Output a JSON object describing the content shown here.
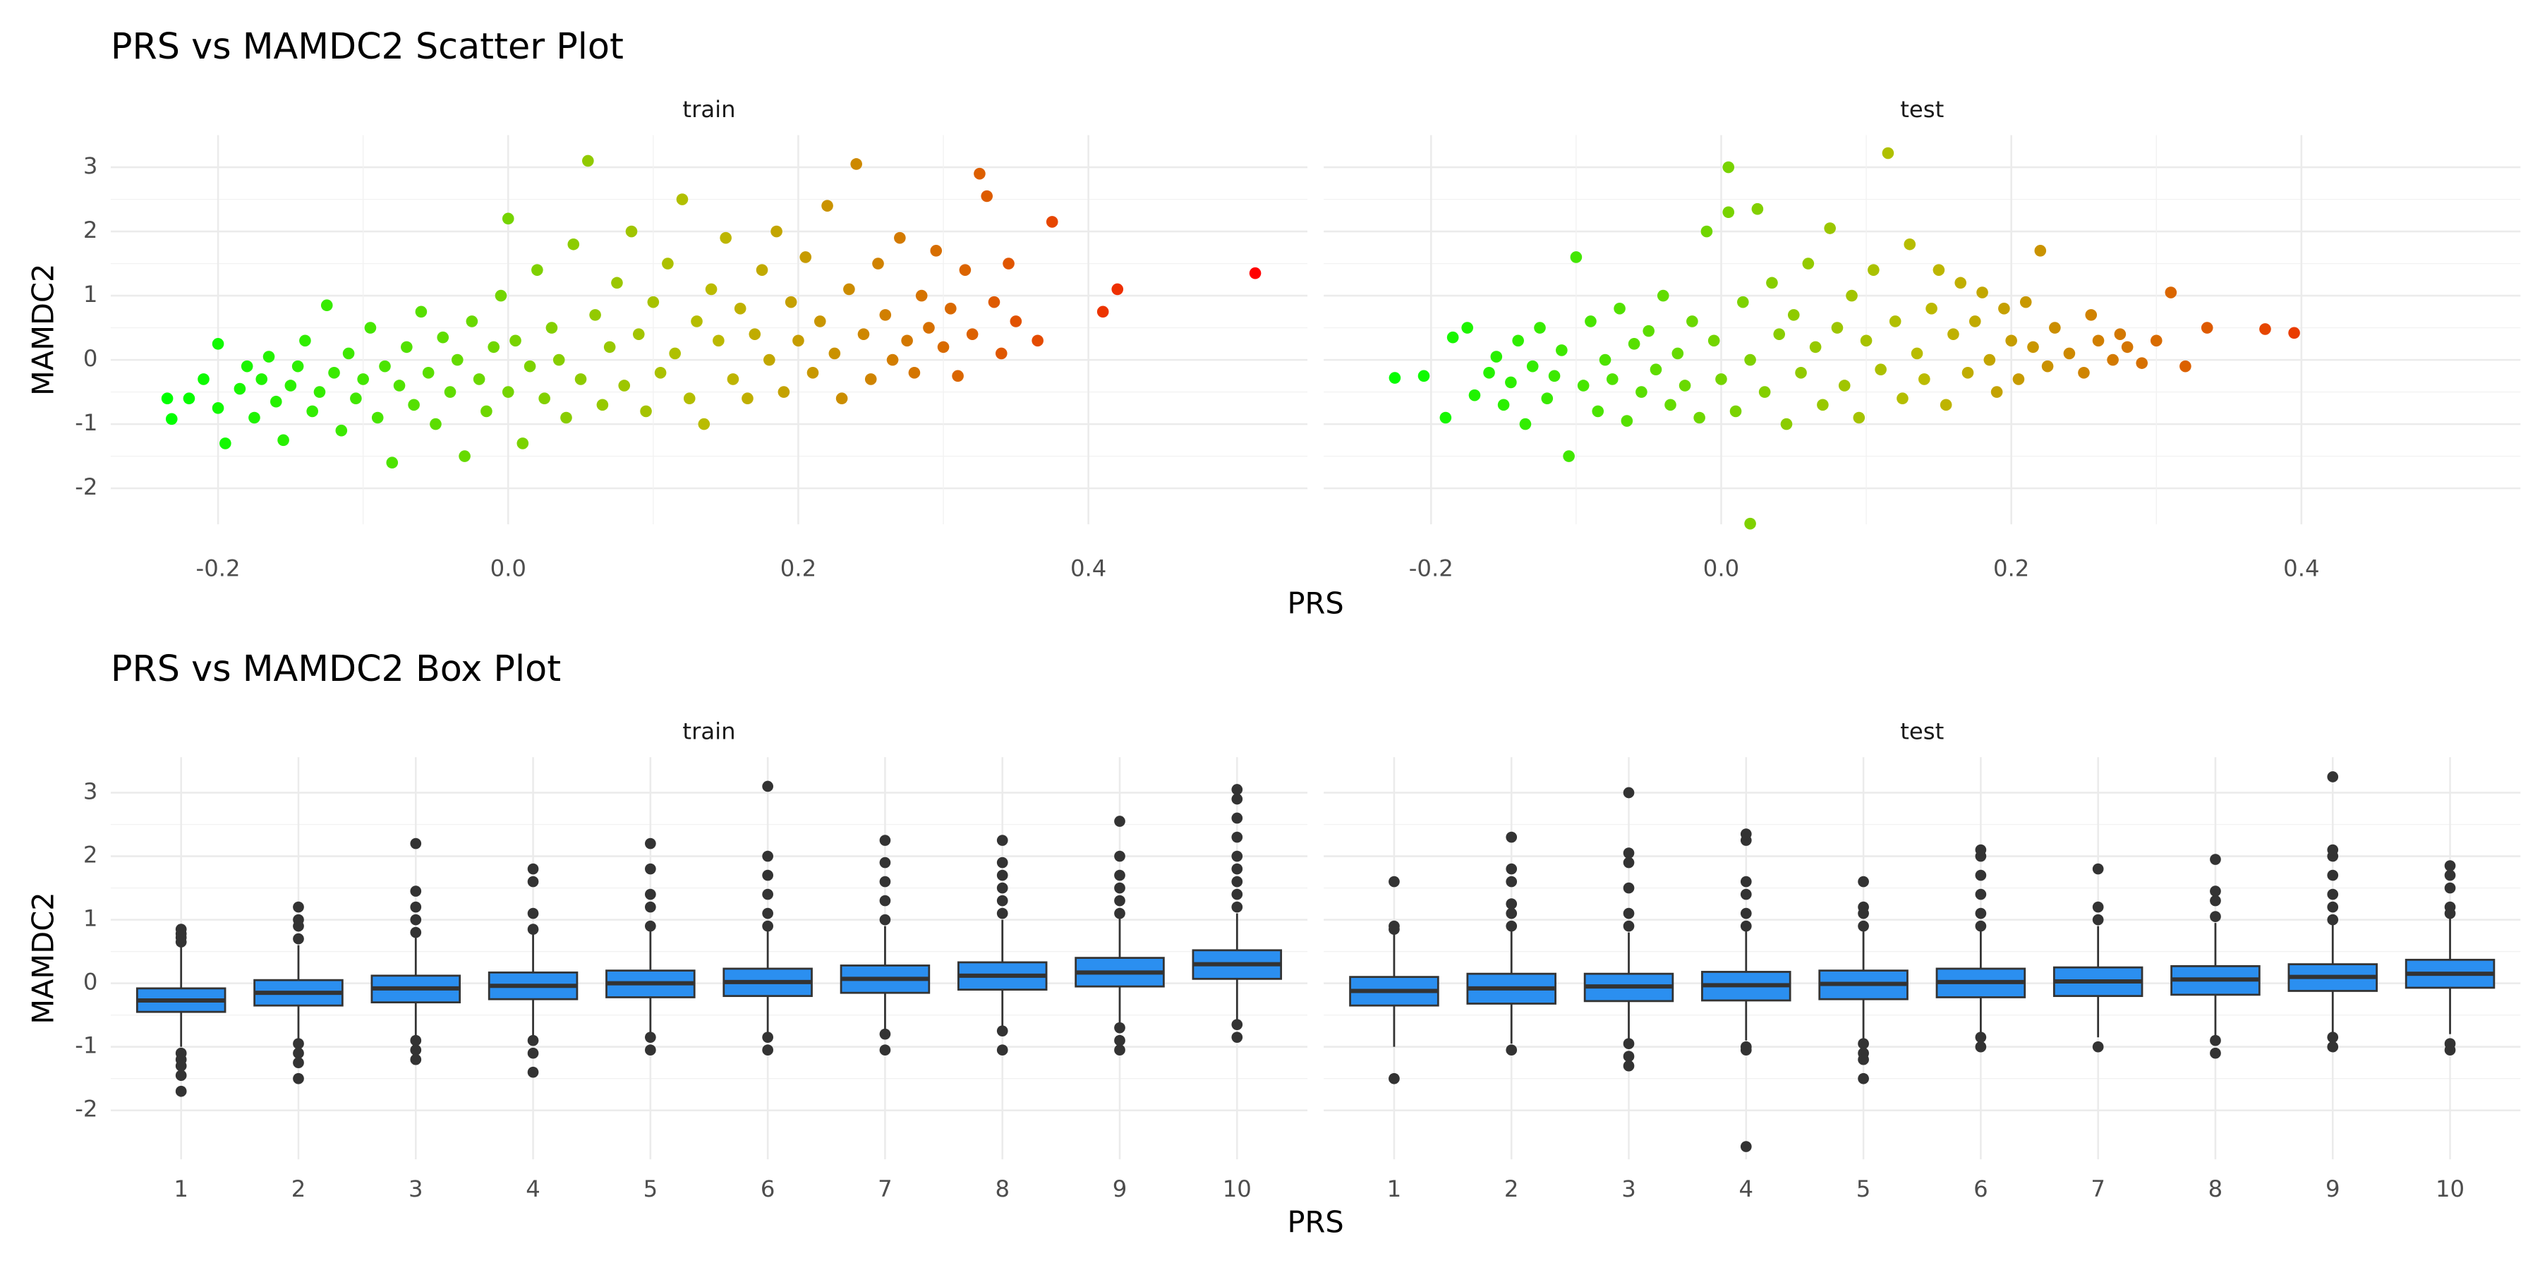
{
  "chart_data": [
    {
      "type": "scatter",
      "title": "PRS vs MAMDC2 Scatter Plot",
      "xlabel": "PRS",
      "ylabel": "MAMDC2",
      "xlim": [
        -0.274,
        0.551
      ],
      "xticks": [
        -0.2,
        {
          "value": 0,
          "label": "0.0"
        },
        0.2,
        0.4
      ],
      "ylim": [
        -2.56,
        3.5
      ],
      "yticks": [
        -2,
        -1,
        0,
        1,
        2,
        3
      ],
      "grid": true,
      "color_low": "#00ff00",
      "color_mid": "#bbbb00",
      "color_high": "#ff0000",
      "facets": [
        {
          "label": "train",
          "x": [
            -0.235,
            -0.232,
            -0.22,
            -0.21,
            -0.2,
            -0.2,
            -0.195,
            -0.185,
            -0.18,
            -0.175,
            -0.17,
            -0.165,
            -0.16,
            -0.155,
            -0.15,
            -0.145,
            -0.14,
            -0.135,
            -0.13,
            -0.125,
            -0.12,
            -0.115,
            -0.11,
            -0.105,
            -0.1,
            -0.095,
            -0.09,
            -0.085,
            -0.08,
            -0.075,
            -0.07,
            -0.065,
            -0.06,
            -0.055,
            -0.05,
            -0.045,
            -0.04,
            -0.035,
            -0.03,
            -0.025,
            -0.02,
            -0.015,
            -0.01,
            -0.005,
            0.0,
            0.0,
            0.005,
            0.01,
            0.015,
            0.02,
            0.025,
            0.03,
            0.035,
            0.04,
            0.045,
            0.05,
            0.055,
            0.06,
            0.065,
            0.07,
            0.075,
            0.08,
            0.085,
            0.09,
            0.095,
            0.1,
            0.105,
            0.11,
            0.115,
            0.12,
            0.125,
            0.13,
            0.135,
            0.14,
            0.145,
            0.15,
            0.155,
            0.16,
            0.165,
            0.17,
            0.175,
            0.18,
            0.185,
            0.19,
            0.195,
            0.2,
            0.205,
            0.21,
            0.215,
            0.22,
            0.225,
            0.23,
            0.235,
            0.24,
            0.245,
            0.25,
            0.255,
            0.26,
            0.265,
            0.27,
            0.275,
            0.28,
            0.285,
            0.29,
            0.295,
            0.3,
            0.305,
            0.31,
            0.315,
            0.32,
            0.325,
            0.33,
            0.335,
            0.34,
            0.345,
            0.35,
            0.365,
            0.375,
            0.41,
            0.42,
            0.515
          ],
          "y": [
            -0.6,
            -0.92,
            -0.6,
            -0.3,
            0.25,
            -0.75,
            -1.3,
            -0.45,
            -0.1,
            -0.9,
            -0.3,
            0.05,
            -0.65,
            -1.25,
            -0.4,
            -0.1,
            0.3,
            -0.8,
            -0.5,
            0.85,
            -0.2,
            -1.1,
            0.1,
            -0.6,
            -0.3,
            0.5,
            -0.9,
            -0.1,
            -1.6,
            -0.4,
            0.2,
            -0.7,
            0.75,
            -0.2,
            -1.0,
            0.35,
            -0.5,
            0.0,
            -1.5,
            0.6,
            -0.3,
            -0.8,
            0.2,
            1.0,
            -0.5,
            2.2,
            0.3,
            -1.3,
            -0.1,
            1.4,
            -0.6,
            0.5,
            0.0,
            -0.9,
            1.8,
            -0.3,
            3.1,
            0.7,
            -0.7,
            0.2,
            1.2,
            -0.4,
            2.0,
            0.4,
            -0.8,
            0.9,
            -0.2,
            1.5,
            0.1,
            2.5,
            -0.6,
            0.6,
            -1.0,
            1.1,
            0.3,
            1.9,
            -0.3,
            0.8,
            -0.6,
            0.4,
            1.4,
            0.0,
            2.0,
            -0.5,
            0.9,
            0.3,
            1.6,
            -0.2,
            0.6,
            2.4,
            0.1,
            -0.6,
            1.1,
            3.05,
            0.4,
            -0.3,
            1.5,
            0.7,
            0.0,
            1.9,
            0.3,
            -0.2,
            1.0,
            0.5,
            1.7,
            0.2,
            0.8,
            -0.25,
            1.4,
            0.4,
            2.9,
            2.55,
            0.9,
            0.1,
            1.5,
            0.6,
            0.3,
            2.15,
            0.75,
            1.1,
            1.35
          ]
        },
        {
          "label": "test",
          "x": [
            -0.225,
            -0.205,
            -0.19,
            -0.185,
            -0.175,
            -0.17,
            -0.16,
            -0.155,
            -0.15,
            -0.145,
            -0.14,
            -0.135,
            -0.13,
            -0.125,
            -0.12,
            -0.115,
            -0.11,
            -0.105,
            -0.1,
            -0.095,
            -0.09,
            -0.085,
            -0.08,
            -0.075,
            -0.07,
            -0.065,
            -0.06,
            -0.055,
            -0.05,
            -0.045,
            -0.04,
            -0.035,
            -0.03,
            -0.025,
            -0.02,
            -0.015,
            -0.01,
            -0.005,
            0.0,
            0.005,
            0.005,
            0.01,
            0.015,
            0.02,
            0.02,
            0.025,
            0.03,
            0.035,
            0.04,
            0.045,
            0.05,
            0.055,
            0.06,
            0.065,
            0.07,
            0.075,
            0.08,
            0.085,
            0.09,
            0.095,
            0.1,
            0.105,
            0.11,
            0.115,
            0.12,
            0.125,
            0.13,
            0.135,
            0.14,
            0.145,
            0.15,
            0.155,
            0.16,
            0.165,
            0.17,
            0.175,
            0.18,
            0.185,
            0.19,
            0.195,
            0.2,
            0.205,
            0.21,
            0.215,
            0.22,
            0.225,
            0.23,
            0.24,
            0.25,
            0.255,
            0.26,
            0.27,
            0.275,
            0.28,
            0.29,
            0.3,
            0.31,
            0.32,
            0.335,
            0.375,
            0.395
          ],
          "y": [
            -0.28,
            -0.25,
            -0.9,
            0.35,
            0.5,
            -0.55,
            -0.2,
            0.05,
            -0.7,
            -0.35,
            0.3,
            -1.0,
            -0.1,
            0.5,
            -0.6,
            -0.25,
            0.15,
            -1.5,
            1.6,
            -0.4,
            0.6,
            -0.8,
            0.0,
            -0.3,
            0.8,
            -0.95,
            0.25,
            -0.5,
            0.45,
            -0.15,
            1.0,
            -0.7,
            0.1,
            -0.4,
            0.6,
            -0.9,
            2.0,
            0.3,
            -0.3,
            2.3,
            3.0,
            -0.8,
            0.9,
            -2.55,
            0.0,
            2.35,
            -0.5,
            1.2,
            0.4,
            -1.0,
            0.7,
            -0.2,
            1.5,
            0.2,
            -0.7,
            2.05,
            0.5,
            -0.4,
            1.0,
            -0.9,
            0.3,
            1.4,
            -0.15,
            3.22,
            0.6,
            -0.6,
            1.8,
            0.1,
            -0.3,
            0.8,
            1.4,
            -0.7,
            0.4,
            1.2,
            -0.2,
            0.6,
            1.05,
            0.0,
            -0.5,
            0.8,
            0.3,
            -0.3,
            0.9,
            0.2,
            1.7,
            -0.1,
            0.5,
            0.1,
            -0.2,
            0.7,
            0.3,
            0.0,
            0.4,
            0.2,
            -0.05,
            0.3,
            1.05,
            -0.1,
            0.5,
            0.48,
            0.42
          ]
        }
      ]
    },
    {
      "type": "box",
      "title": "PRS vs MAMDC2 Box Plot",
      "xlabel": "PRS",
      "ylabel": "MAMDC2",
      "categories": [
        "1",
        "2",
        "3",
        "4",
        "5",
        "6",
        "7",
        "8",
        "9",
        "10"
      ],
      "ylim": [
        -2.77,
        3.56
      ],
      "yticks": [
        -2,
        -1,
        0,
        1,
        2,
        3
      ],
      "grid": true,
      "color": "#2b8ff0",
      "outline": "#333333",
      "facets": [
        {
          "label": "train",
          "boxes": [
            {
              "lower": -1.0,
              "q1": -0.45,
              "median": -0.27,
              "q3": -0.08,
              "upper": 0.62,
              "outliers": [
                0.65,
                0.72,
                0.78,
                0.85,
                -1.1,
                -1.2,
                -1.3,
                -1.45,
                -1.7
              ]
            },
            {
              "lower": -0.9,
              "q1": -0.35,
              "median": -0.15,
              "q3": 0.05,
              "upper": 0.6,
              "outliers": [
                0.7,
                0.9,
                1.0,
                1.2,
                -0.95,
                -1.1,
                -1.25,
                -1.5
              ]
            },
            {
              "lower": -0.85,
              "q1": -0.3,
              "median": -0.08,
              "q3": 0.12,
              "upper": 0.75,
              "outliers": [
                0.8,
                1.0,
                1.2,
                1.45,
                2.2,
                -0.9,
                -1.05,
                -1.2
              ]
            },
            {
              "lower": -0.85,
              "q1": -0.25,
              "median": -0.04,
              "q3": 0.17,
              "upper": 0.8,
              "outliers": [
                0.85,
                1.1,
                1.6,
                1.8,
                -0.9,
                -1.1,
                -1.4
              ]
            },
            {
              "lower": -0.8,
              "q1": -0.22,
              "median": 0.0,
              "q3": 0.2,
              "upper": 0.85,
              "outliers": [
                0.9,
                1.2,
                1.4,
                1.8,
                2.2,
                -0.85,
                -1.05
              ]
            },
            {
              "lower": -0.8,
              "q1": -0.2,
              "median": 0.02,
              "q3": 0.23,
              "upper": 0.85,
              "outliers": [
                0.9,
                1.1,
                1.4,
                1.7,
                2.0,
                3.1,
                -0.85,
                -1.05
              ]
            },
            {
              "lower": -0.75,
              "q1": -0.15,
              "median": 0.07,
              "q3": 0.28,
              "upper": 0.9,
              "outliers": [
                1.0,
                1.3,
                1.6,
                1.9,
                2.25,
                -0.8,
                -1.05
              ]
            },
            {
              "lower": -0.7,
              "q1": -0.1,
              "median": 0.12,
              "q3": 0.33,
              "upper": 1.0,
              "outliers": [
                1.1,
                1.3,
                1.5,
                1.7,
                1.9,
                2.25,
                -0.75,
                -1.05
              ]
            },
            {
              "lower": -0.65,
              "q1": -0.05,
              "median": 0.17,
              "q3": 0.4,
              "upper": 1.05,
              "outliers": [
                1.1,
                1.3,
                1.5,
                1.7,
                2.0,
                2.55,
                -0.7,
                -0.9,
                -1.05
              ]
            },
            {
              "lower": -0.6,
              "q1": 0.07,
              "median": 0.3,
              "q3": 0.52,
              "upper": 1.1,
              "outliers": [
                1.2,
                1.4,
                1.6,
                1.8,
                2.0,
                2.3,
                2.6,
                2.9,
                3.05,
                -0.65,
                -0.85
              ]
            }
          ]
        },
        {
          "label": "test",
          "boxes": [
            {
              "lower": -1.0,
              "q1": -0.35,
              "median": -0.12,
              "q3": 0.1,
              "upper": 0.8,
              "outliers": [
                0.85,
                0.9,
                1.6,
                -1.5
              ]
            },
            {
              "lower": -0.95,
              "q1": -0.32,
              "median": -0.08,
              "q3": 0.15,
              "upper": 0.85,
              "outliers": [
                0.9,
                1.1,
                1.25,
                1.6,
                1.8,
                2.3,
                -1.05
              ]
            },
            {
              "lower": -0.9,
              "q1": -0.28,
              "median": -0.05,
              "q3": 0.15,
              "upper": 0.8,
              "outliers": [
                0.9,
                1.1,
                1.5,
                1.9,
                2.05,
                3.0,
                -0.95,
                -1.15,
                -1.3
              ]
            },
            {
              "lower": -0.9,
              "q1": -0.27,
              "median": -0.03,
              "q3": 0.18,
              "upper": 0.85,
              "outliers": [
                0.9,
                1.1,
                1.4,
                1.6,
                2.25,
                2.35,
                -1.0,
                -1.05,
                -2.57
              ]
            },
            {
              "lower": -0.9,
              "q1": -0.25,
              "median": -0.01,
              "q3": 0.2,
              "upper": 0.85,
              "outliers": [
                0.9,
                1.1,
                1.2,
                1.6,
                -0.95,
                -1.1,
                -1.2,
                -1.5
              ]
            },
            {
              "lower": -0.8,
              "q1": -0.22,
              "median": 0.02,
              "q3": 0.23,
              "upper": 0.85,
              "outliers": [
                0.9,
                1.1,
                1.4,
                1.7,
                2.0,
                2.1,
                -0.85,
                -1.0
              ]
            },
            {
              "lower": -0.85,
              "q1": -0.2,
              "median": 0.03,
              "q3": 0.25,
              "upper": 0.9,
              "outliers": [
                1.0,
                1.2,
                1.8,
                -1.0
              ]
            },
            {
              "lower": -0.85,
              "q1": -0.18,
              "median": 0.06,
              "q3": 0.27,
              "upper": 0.95,
              "outliers": [
                1.05,
                1.3,
                1.45,
                1.95,
                -0.9,
                -1.1
              ]
            },
            {
              "lower": -0.8,
              "q1": -0.12,
              "median": 0.1,
              "q3": 0.3,
              "upper": 0.95,
              "outliers": [
                1.0,
                1.2,
                1.4,
                1.7,
                2.0,
                2.1,
                3.25,
                -0.85,
                -1.0
              ]
            },
            {
              "lower": -0.8,
              "q1": -0.07,
              "median": 0.15,
              "q3": 0.37,
              "upper": 1.05,
              "outliers": [
                1.1,
                1.2,
                1.5,
                1.7,
                1.85,
                -0.95,
                -1.05
              ]
            }
          ]
        }
      ]
    }
  ]
}
